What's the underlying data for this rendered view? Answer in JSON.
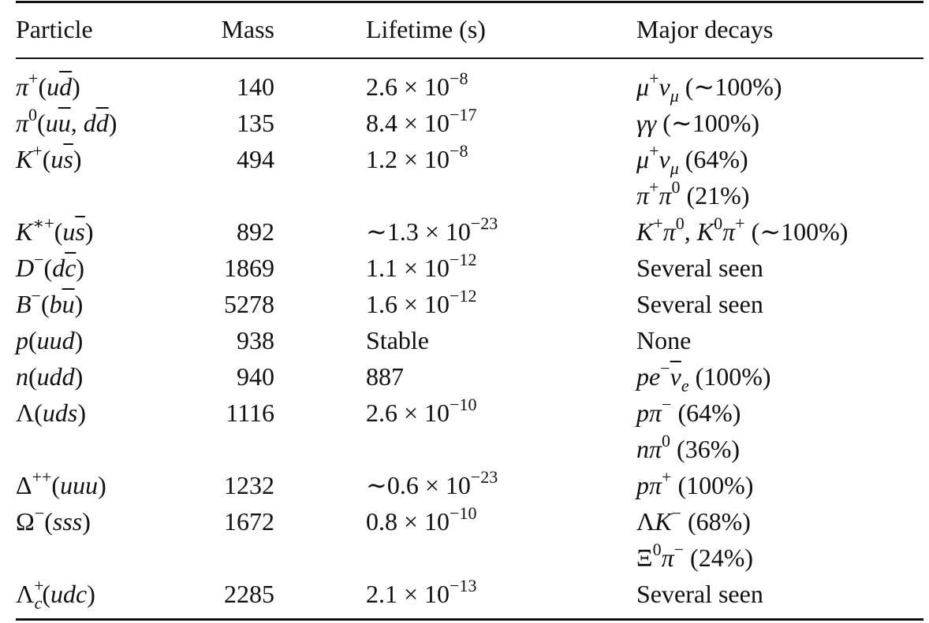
{
  "headers": {
    "particle": "Particle",
    "mass": "Mass",
    "lifetime": "Lifetime (s)",
    "decays": "Major decays"
  },
  "rows": [
    {
      "particle": "π⁺(ud̄)",
      "mass": "140",
      "lifetime": "2.6 × 10⁻⁸",
      "decays": [
        "μ⁺νμ (∼100%)"
      ]
    },
    {
      "particle": "π⁰(uū, dd̄)",
      "mass": "135",
      "lifetime": "8.4 × 10⁻¹⁷",
      "decays": [
        "γγ (∼100%)"
      ]
    },
    {
      "particle": "K⁺(us̄)",
      "mass": "494",
      "lifetime": "1.2 × 10⁻⁸",
      "decays": [
        "μ⁺νμ (64%)",
        "π⁺π⁰ (21%)"
      ]
    },
    {
      "particle": "K*⁺(us̄)",
      "mass": "892",
      "lifetime": "∼1.3 × 10⁻²³",
      "decays": [
        "K⁺π⁰, K⁰π⁺ (∼100%)"
      ]
    },
    {
      "particle": "D⁻(dc̄)",
      "mass": "1869",
      "lifetime": "1.1 × 10⁻¹²",
      "decays": [
        "Several seen"
      ]
    },
    {
      "particle": "B⁻(bū)",
      "mass": "5278",
      "lifetime": "1.6 × 10⁻¹²",
      "decays": [
        "Several seen"
      ]
    },
    {
      "particle": "p(uud)",
      "mass": "938",
      "lifetime": "Stable",
      "decays": [
        "None"
      ]
    },
    {
      "particle": "n(udd)",
      "mass": "940",
      "lifetime": "887",
      "decays": [
        "pe⁻ν̄e (100%)"
      ]
    },
    {
      "particle": "Λ(uds)",
      "mass": "1116",
      "lifetime": "2.6 × 10⁻¹⁰",
      "decays": [
        "pπ⁻ (64%)",
        "nπ⁰ (36%)"
      ]
    },
    {
      "particle": "Δ⁺⁺(uuu)",
      "mass": "1232",
      "lifetime": "∼0.6 × 10⁻²³",
      "decays": [
        "pπ⁺ (100%)"
      ]
    },
    {
      "particle": "Ω⁻(sss)",
      "mass": "1672",
      "lifetime": "0.8 × 10⁻¹⁰",
      "decays": [
        "ΛK⁻ (68%)",
        "Ξ⁰π⁻ (24%)"
      ]
    },
    {
      "particle": "Λc⁺(udc)",
      "mass": "2285",
      "lifetime": "2.1 × 10⁻¹³",
      "decays": [
        "Several seen"
      ]
    }
  ]
}
